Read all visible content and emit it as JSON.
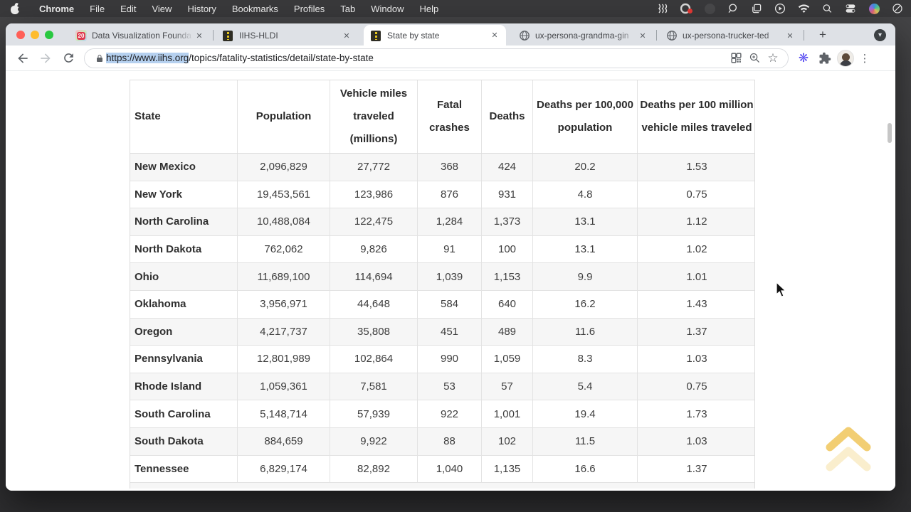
{
  "menu_bar": {
    "app_name": "Chrome",
    "items": [
      "File",
      "Edit",
      "View",
      "History",
      "Bookmarks",
      "Profiles",
      "Tab",
      "Window",
      "Help"
    ],
    "status_icon_names": [
      "stage-manager",
      "screen-recorder-with-red-badge",
      "dimmed-app",
      "zoom-magnifier",
      "window-stack",
      "play-circle",
      "wifi",
      "spotlight-search",
      "control-center",
      "colorful-media-app",
      "focus-do-not-disturb"
    ]
  },
  "browser": {
    "tabs": [
      {
        "label": "Data Visualization Founda",
        "favicon": "calendar-badge",
        "badge": "20",
        "active": false
      },
      {
        "label": "IIHS-HLDI",
        "favicon": "road",
        "active": false
      },
      {
        "label": "State by state",
        "favicon": "road",
        "active": true
      },
      {
        "label": "ux-persona-grandma-gin",
        "favicon": "globe",
        "active": false
      },
      {
        "label": "ux-persona-trucker-ted",
        "favicon": "globe",
        "active": false
      }
    ],
    "url_selected": "https://www.iihs.org",
    "url_rest": "/topics/fatality-statistics/detail/state-by-state"
  },
  "icons": {
    "close": "✕",
    "plus": "+",
    "chevron_down": "▾",
    "star": "☆",
    "asterisk": "❋",
    "kebab": "⋮"
  },
  "table": {
    "headers": [
      "State",
      "Population",
      "Vehicle miles traveled (millions)",
      "Fatal crashes",
      "Deaths",
      "Deaths per 100,000 population",
      "Deaths per 100 million vehicle miles traveled"
    ],
    "rows": [
      [
        "New Mexico",
        "2,096,829",
        "27,772",
        "368",
        "424",
        "20.2",
        "1.53"
      ],
      [
        "New York",
        "19,453,561",
        "123,986",
        "876",
        "931",
        "4.8",
        "0.75"
      ],
      [
        "North Carolina",
        "10,488,084",
        "122,475",
        "1,284",
        "1,373",
        "13.1",
        "1.12"
      ],
      [
        "North Dakota",
        "762,062",
        "9,826",
        "91",
        "100",
        "13.1",
        "1.02"
      ],
      [
        "Ohio",
        "11,689,100",
        "114,694",
        "1,039",
        "1,153",
        "9.9",
        "1.01"
      ],
      [
        "Oklahoma",
        "3,956,971",
        "44,648",
        "584",
        "640",
        "16.2",
        "1.43"
      ],
      [
        "Oregon",
        "4,217,737",
        "35,808",
        "451",
        "489",
        "11.6",
        "1.37"
      ],
      [
        "Pennsylvania",
        "12,801,989",
        "102,864",
        "990",
        "1,059",
        "8.3",
        "1.03"
      ],
      [
        "Rhode Island",
        "1,059,361",
        "7,581",
        "53",
        "57",
        "5.4",
        "0.75"
      ],
      [
        "South Carolina",
        "5,148,714",
        "57,939",
        "922",
        "1,001",
        "19.4",
        "1.73"
      ],
      [
        "South Dakota",
        "884,659",
        "9,922",
        "88",
        "102",
        "11.5",
        "1.03"
      ],
      [
        "Tennessee",
        "6,829,174",
        "82,892",
        "1,040",
        "1,135",
        "16.6",
        "1.37"
      ]
    ]
  },
  "colors": {
    "menu_bar_bg": "#39393b",
    "desktop_bg": "#3a3a3c",
    "tabstrip_bg": "#dee1e6",
    "active_tab_bg": "#ffffff",
    "url_selection": "#b5d0ef",
    "table_stripe": "#f6f6f6",
    "table_border": "#dcdcdc",
    "back_to_top_gold": "#f0c65a",
    "extension_purple": "#5b4ff2",
    "traffic_red": "#ff5f57",
    "traffic_yellow": "#febc2e",
    "traffic_green": "#28c840"
  }
}
